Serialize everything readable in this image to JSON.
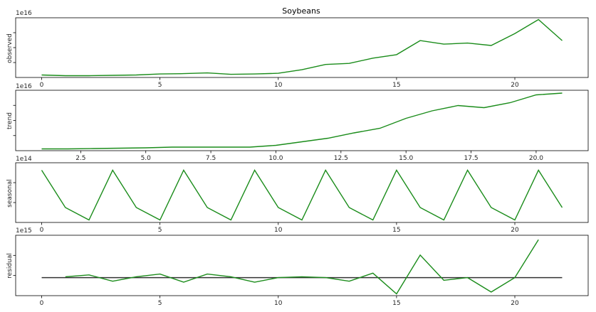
{
  "chart_data": [
    {
      "type": "line",
      "id": "observed",
      "title": "Soybeans",
      "ylabel": "observed",
      "offset_text": "1e16",
      "color": "#1a8c1a",
      "xlim": [
        -1.1,
        23.1
      ],
      "ylim": [
        -0.05,
        1.65
      ],
      "xticks": [
        0,
        5,
        10,
        15,
        20
      ],
      "x": [
        0,
        1,
        2,
        3,
        4,
        5,
        6,
        7,
        8,
        9,
        10,
        11,
        12,
        13,
        14,
        15,
        16,
        17,
        18,
        19,
        20,
        21,
        22
      ],
      "values": [
        0.02,
        0.0,
        0.0,
        0.01,
        0.02,
        0.05,
        0.06,
        0.08,
        0.04,
        0.05,
        0.07,
        0.17,
        0.32,
        0.35,
        0.5,
        0.6,
        1.0,
        0.9,
        0.93,
        0.86,
        1.2,
        1.6,
        1.0
      ],
      "ytick_count": 3
    },
    {
      "type": "line",
      "id": "trend",
      "ylabel": "trend",
      "offset_text": "1e16",
      "color": "#1a8c1a",
      "xlim": [
        0.0,
        22.0
      ],
      "ylim": [
        -0.05,
        1.65
      ],
      "xticks": [
        2.5,
        5.0,
        7.5,
        10.0,
        12.5,
        15.0,
        17.5,
        20.0
      ],
      "xtick_labels": [
        "2.5",
        "5.0",
        "7.5",
        "10.0",
        "12.5",
        "15.0",
        "17.5",
        "20.0"
      ],
      "x": [
        1,
        2,
        3,
        4,
        5,
        6,
        7,
        8,
        9,
        10,
        11,
        12,
        13,
        14,
        15,
        16,
        17,
        18,
        19,
        20,
        21
      ],
      "values": [
        0.0,
        0.0,
        0.01,
        0.02,
        0.03,
        0.05,
        0.05,
        0.05,
        0.05,
        0.1,
        0.2,
        0.3,
        0.45,
        0.58,
        0.86,
        1.07,
        1.22,
        1.16,
        1.3,
        1.52,
        1.57
      ],
      "ytick_count": 3
    },
    {
      "type": "line",
      "id": "seasonal",
      "ylabel": "seasonal",
      "offset_text": "1e14",
      "color": "#1a8c1a",
      "xlim": [
        -1.1,
        23.1
      ],
      "ylim": [
        -1.1,
        1.3
      ],
      "xticks": [
        0,
        5,
        10,
        15,
        20
      ],
      "x": [
        0,
        1,
        2,
        3,
        4,
        5,
        6,
        7,
        8,
        9,
        10,
        11,
        12,
        13,
        14,
        15,
        16,
        17,
        18,
        19,
        20,
        21,
        22
      ],
      "values": [
        1.0,
        -0.5,
        -1.0,
        1.0,
        -0.5,
        -1.0,
        1.0,
        -0.5,
        -1.0,
        1.0,
        -0.5,
        -1.0,
        1.0,
        -0.5,
        -1.0,
        1.0,
        -0.5,
        -1.0,
        1.0,
        -0.5,
        -1.0,
        1.0,
        -0.5
      ],
      "ytick_count": 2
    },
    {
      "type": "line",
      "id": "residual",
      "ylabel": "residual",
      "offset_text": "1e15",
      "color": "#1a8c1a",
      "baseline_color": "#333333",
      "xlim": [
        -1.1,
        23.1
      ],
      "ylim": [
        -2.0,
        4.7
      ],
      "xticks": [
        0,
        5,
        10,
        15,
        20
      ],
      "baseline": 0,
      "baseline_x": [
        0,
        22
      ],
      "x": [
        1,
        2,
        3,
        4,
        5,
        6,
        7,
        8,
        9,
        10,
        11,
        12,
        13,
        14,
        15,
        16,
        17,
        18,
        19,
        20,
        21
      ],
      "values": [
        0.1,
        0.3,
        -0.4,
        0.1,
        0.4,
        -0.5,
        0.4,
        0.1,
        -0.5,
        0.0,
        0.1,
        0.0,
        -0.4,
        0.5,
        -1.8,
        2.5,
        -0.3,
        0.0,
        -1.6,
        0.0,
        4.2
      ],
      "ytick_count": 2
    }
  ]
}
